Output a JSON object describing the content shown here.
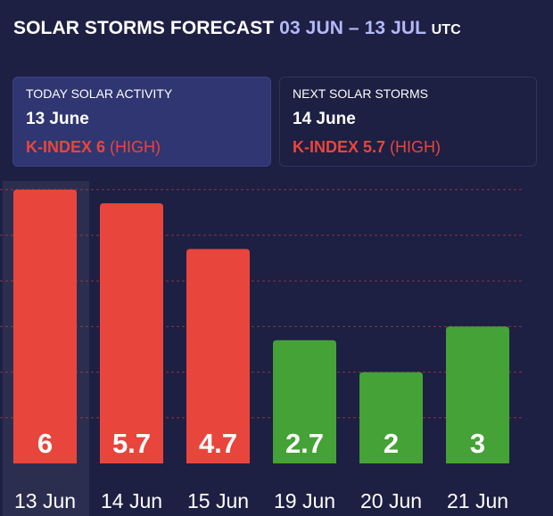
{
  "header": {
    "title": "SOLAR STORMS FORECAST",
    "range": "03 JUN – 13 JUL",
    "timezone": "UTC"
  },
  "today_card": {
    "label": "TODAY SOLAR ACTIVITY",
    "date": "13 June",
    "k_label": "K-INDEX 6",
    "level": "(HIGH)"
  },
  "next_card": {
    "label": "NEXT SOLAR STORMS",
    "date": "14 June",
    "k_label": "K-INDEX 5.7",
    "level": "(HIGH)"
  },
  "colors": {
    "background": "#1d1f43",
    "high": "#e8463c",
    "low": "#44a237",
    "accent": "#b4b8f6",
    "gridline": "#a8423d"
  },
  "chart_data": {
    "type": "bar",
    "categories": [
      "13 Jun",
      "14 Jun",
      "15 Jun",
      "19 Jun",
      "20 Jun",
      "21 Jun"
    ],
    "values": [
      6,
      5.7,
      4.7,
      2.7,
      2,
      3
    ],
    "value_labels": [
      "6",
      "5.7",
      "4.7",
      "2.7",
      "2",
      "3"
    ],
    "high_threshold": 4,
    "selected_index": 0,
    "ylim": [
      0,
      6.6
    ],
    "grid": true
  }
}
